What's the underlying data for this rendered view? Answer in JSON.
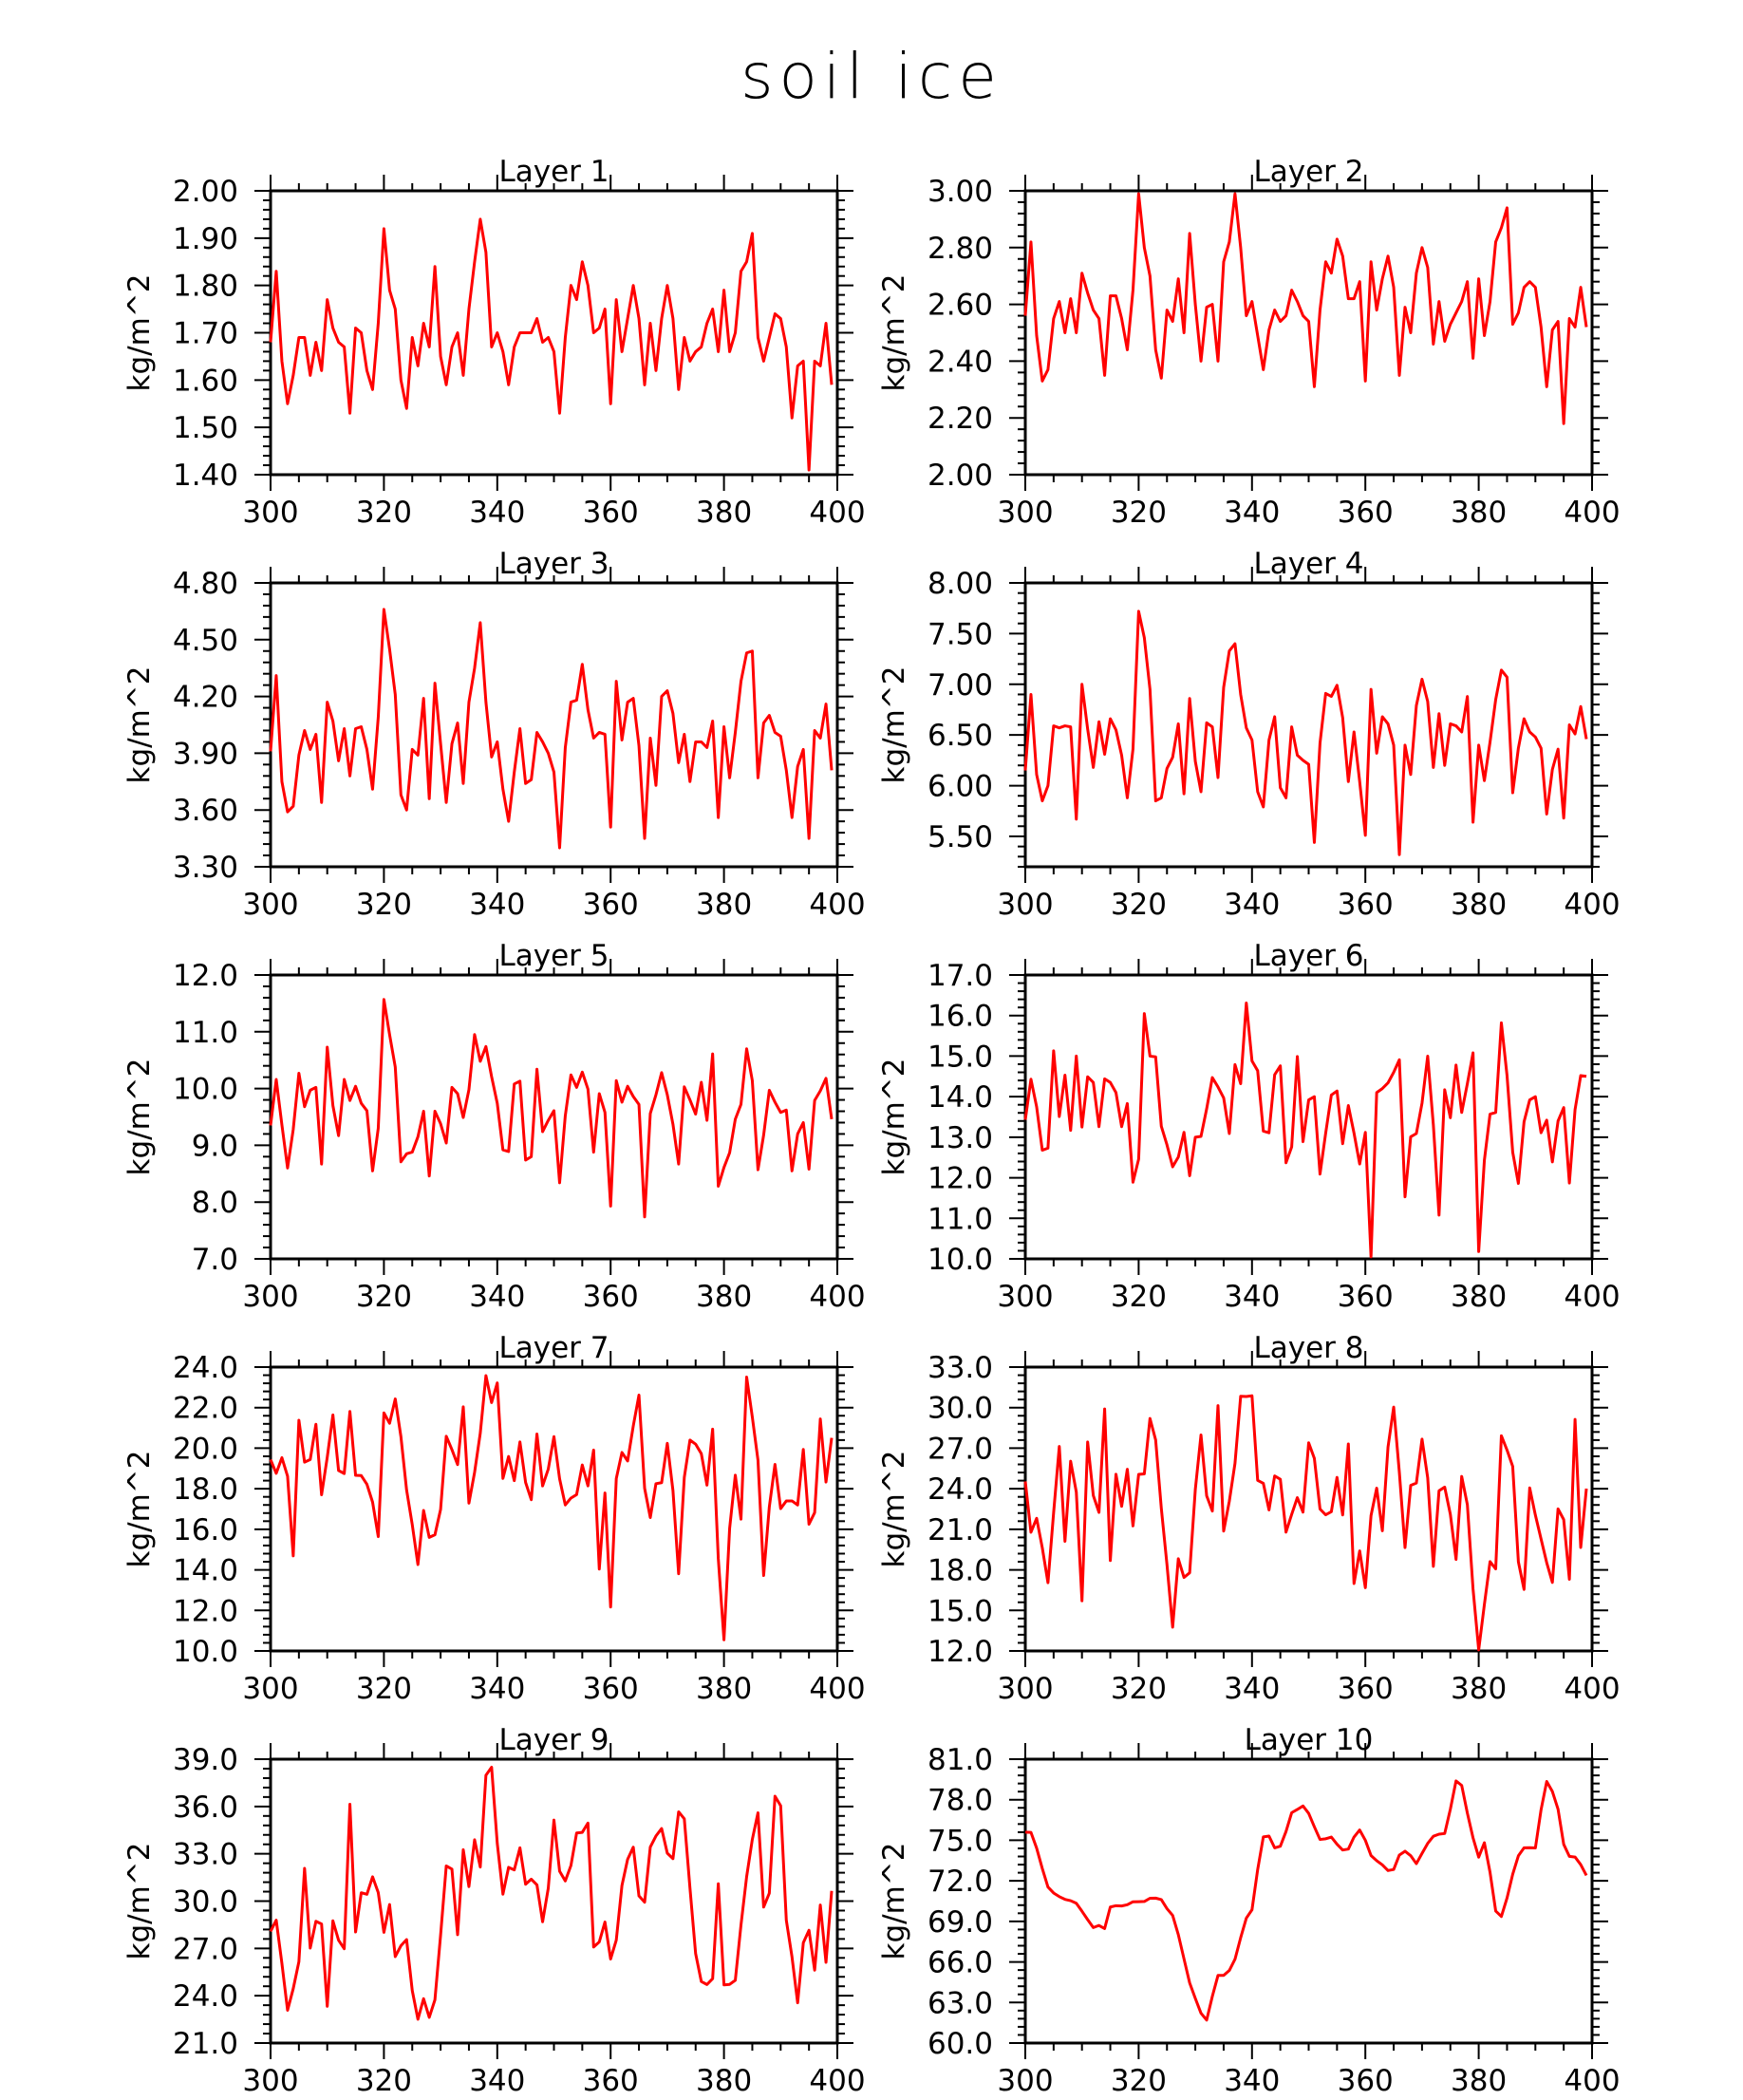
{
  "page": {
    "title": "soil ice"
  },
  "style": {
    "line_color": "#ff0000",
    "axis_color": "#000000"
  },
  "chart_data": [
    {
      "type": "line",
      "title": "Layer 1",
      "xlabel": "",
      "ylabel": "kg/m^2",
      "xlim": [
        300,
        400
      ],
      "ylim": [
        1.4,
        2.0
      ],
      "xticks": [
        "300",
        "320",
        "340",
        "360",
        "380",
        "400"
      ],
      "yticks": [
        "1.40",
        "1.50",
        "1.60",
        "1.70",
        "1.80",
        "1.90",
        "2.00"
      ],
      "x_start": 300,
      "values": [
        1.68,
        1.83,
        1.64,
        1.55,
        1.61,
        1.69,
        1.69,
        1.61,
        1.68,
        1.62,
        1.77,
        1.71,
        1.68,
        1.67,
        1.53,
        1.71,
        1.7,
        1.62,
        1.58,
        1.72,
        1.92,
        1.79,
        1.75,
        1.6,
        1.54,
        1.69,
        1.63,
        1.72,
        1.67,
        1.84,
        1.65,
        1.59,
        1.67,
        1.7,
        1.61,
        1.75,
        1.85,
        1.94,
        1.87,
        1.67,
        1.7,
        1.66,
        1.59,
        1.67,
        1.7,
        1.7,
        1.7,
        1.73,
        1.68,
        1.69,
        1.66,
        1.53,
        1.69,
        1.8,
        1.77,
        1.85,
        1.8,
        1.7,
        1.71,
        1.75,
        1.55,
        1.77,
        1.66,
        1.73,
        1.8,
        1.73,
        1.59,
        1.72,
        1.62,
        1.73,
        1.8,
        1.73,
        1.58,
        1.69,
        1.64,
        1.66,
        1.67,
        1.72,
        1.75,
        1.66,
        1.79,
        1.66,
        1.7,
        1.83,
        1.85,
        1.91,
        1.69,
        1.64,
        1.69,
        1.74,
        1.73,
        1.67,
        1.52,
        1.63,
        1.64,
        1.41,
        1.64,
        1.63,
        1.72,
        1.59
      ]
    },
    {
      "type": "line",
      "title": "Layer 2",
      "xlabel": "",
      "ylabel": "kg/m^2",
      "xlim": [
        300,
        400
      ],
      "ylim": [
        2.0,
        3.0
      ],
      "xticks": [
        "300",
        "320",
        "340",
        "360",
        "380",
        "400"
      ],
      "yticks": [
        "2.00",
        "2.20",
        "2.40",
        "2.60",
        "2.80",
        "3.00"
      ],
      "x_start": 300,
      "values": [
        2.56,
        2.82,
        2.49,
        2.33,
        2.37,
        2.55,
        2.61,
        2.5,
        2.62,
        2.5,
        2.71,
        2.64,
        2.58,
        2.55,
        2.35,
        2.63,
        2.63,
        2.55,
        2.44,
        2.65,
        2.99,
        2.8,
        2.7,
        2.44,
        2.34,
        2.58,
        2.54,
        2.69,
        2.5,
        2.85,
        2.6,
        2.4,
        2.59,
        2.6,
        2.4,
        2.75,
        2.82,
        2.99,
        2.8,
        2.56,
        2.61,
        2.49,
        2.37,
        2.51,
        2.58,
        2.54,
        2.56,
        2.65,
        2.61,
        2.56,
        2.54,
        2.31,
        2.58,
        2.75,
        2.71,
        2.83,
        2.77,
        2.62,
        2.62,
        2.68,
        2.33,
        2.75,
        2.58,
        2.69,
        2.77,
        2.66,
        2.35,
        2.59,
        2.5,
        2.71,
        2.8,
        2.73,
        2.46,
        2.61,
        2.47,
        2.53,
        2.57,
        2.61,
        2.68,
        2.41,
        2.69,
        2.49,
        2.61,
        2.82,
        2.87,
        2.94,
        2.53,
        2.57,
        2.66,
        2.68,
        2.66,
        2.52,
        2.31,
        2.51,
        2.54,
        2.18,
        2.55,
        2.52,
        2.66,
        2.52
      ]
    },
    {
      "type": "line",
      "title": "Layer 3",
      "xlabel": "",
      "ylabel": "kg/m^2",
      "xlim": [
        300,
        400
      ],
      "ylim": [
        3.3,
        4.8
      ],
      "xticks": [
        "300",
        "320",
        "340",
        "360",
        "380",
        "400"
      ],
      "yticks": [
        "3.30",
        "3.60",
        "3.90",
        "4.20",
        "4.50",
        "4.80"
      ],
      "x_start": 300,
      "values": [
        3.91,
        4.31,
        3.75,
        3.59,
        3.62,
        3.89,
        4.02,
        3.92,
        4.0,
        3.64,
        4.17,
        4.07,
        3.86,
        4.03,
        3.78,
        4.03,
        4.04,
        3.92,
        3.71,
        4.09,
        4.66,
        4.45,
        4.21,
        3.68,
        3.6,
        3.92,
        3.89,
        4.19,
        3.66,
        4.27,
        3.95,
        3.64,
        3.95,
        4.06,
        3.74,
        4.17,
        4.35,
        4.59,
        4.17,
        3.88,
        3.96,
        3.71,
        3.54,
        3.8,
        4.03,
        3.74,
        3.76,
        4.01,
        3.96,
        3.9,
        3.8,
        3.4,
        3.93,
        4.17,
        4.18,
        4.37,
        4.13,
        3.98,
        4.01,
        4.0,
        3.51,
        4.28,
        3.97,
        4.17,
        4.19,
        3.94,
        3.45,
        3.98,
        3.73,
        4.2,
        4.23,
        4.11,
        3.85,
        4.0,
        3.75,
        3.96,
        3.96,
        3.93,
        4.07,
        3.56,
        4.04,
        3.77,
        4.01,
        4.28,
        4.43,
        4.44,
        3.77,
        4.06,
        4.1,
        4.01,
        3.99,
        3.81,
        3.56,
        3.83,
        3.92,
        3.45,
        4.02,
        3.98,
        4.16,
        3.81
      ]
    },
    {
      "type": "line",
      "title": "Layer 4",
      "xlabel": "",
      "ylabel": "kg/m^2",
      "xlim": [
        300,
        400
      ],
      "ylim": [
        5.2,
        8.0
      ],
      "xticks": [
        "300",
        "320",
        "340",
        "360",
        "380",
        "400"
      ],
      "yticks": [
        "5.50",
        "6.00",
        "6.50",
        "7.00",
        "7.50",
        "8.00"
      ],
      "x_start": 300,
      "values": [
        6.15,
        6.9,
        6.11,
        5.85,
        6.0,
        6.59,
        6.57,
        6.59,
        6.58,
        5.67,
        7.0,
        6.56,
        6.18,
        6.63,
        6.31,
        6.66,
        6.55,
        6.3,
        5.88,
        6.36,
        7.72,
        7.46,
        6.95,
        5.85,
        5.88,
        6.17,
        6.28,
        6.61,
        5.92,
        6.86,
        6.24,
        5.94,
        6.62,
        6.58,
        6.08,
        6.97,
        7.33,
        7.4,
        6.9,
        6.57,
        6.45,
        5.94,
        5.79,
        6.45,
        6.68,
        5.98,
        5.88,
        6.58,
        6.3,
        6.25,
        6.21,
        5.44,
        6.42,
        6.91,
        6.88,
        6.99,
        6.67,
        6.04,
        6.53,
        6.04,
        5.51,
        6.95,
        6.32,
        6.68,
        6.61,
        6.4,
        5.32,
        6.4,
        6.11,
        6.79,
        7.05,
        6.83,
        6.18,
        6.71,
        6.2,
        6.61,
        6.59,
        6.53,
        6.88,
        5.64,
        6.4,
        6.05,
        6.43,
        6.85,
        7.14,
        7.07,
        5.93,
        6.37,
        6.66,
        6.53,
        6.48,
        6.37,
        5.72,
        6.16,
        6.36,
        5.68,
        6.6,
        6.51,
        6.78,
        6.46
      ]
    },
    {
      "type": "line",
      "title": "Layer 5",
      "xlabel": "",
      "ylabel": "kg/m^2",
      "xlim": [
        300,
        400
      ],
      "ylim": [
        7.0,
        12.0
      ],
      "xticks": [
        "300",
        "320",
        "340",
        "360",
        "380",
        "400"
      ],
      "yticks": [
        "7.0",
        "8.0",
        "9.0",
        "10.0",
        "11.0",
        "12.0"
      ],
      "x_start": 300,
      "values": [
        9.35,
        10.16,
        9.36,
        8.6,
        9.28,
        10.27,
        9.68,
        9.97,
        10.02,
        8.67,
        10.73,
        9.7,
        9.17,
        10.16,
        9.79,
        10.04,
        9.74,
        9.61,
        8.55,
        9.3,
        11.57,
        10.95,
        10.38,
        8.71,
        8.85,
        8.88,
        9.15,
        9.6,
        8.46,
        9.6,
        9.38,
        9.04,
        10.02,
        9.91,
        9.49,
        9.98,
        10.95,
        10.48,
        10.74,
        10.21,
        9.74,
        8.92,
        8.89,
        10.08,
        10.13,
        8.74,
        8.8,
        10.34,
        9.24,
        9.44,
        9.61,
        8.34,
        9.52,
        10.24,
        10.02,
        10.29,
        9.99,
        8.88,
        9.91,
        9.58,
        7.93,
        10.14,
        9.76,
        10.04,
        9.86,
        9.72,
        7.74,
        9.56,
        9.89,
        10.28,
        9.89,
        9.37,
        8.67,
        10.03,
        9.8,
        9.55,
        10.11,
        9.44,
        10.61,
        8.28,
        8.61,
        8.87,
        9.46,
        9.72,
        10.7,
        10.14,
        8.57,
        9.18,
        9.97,
        9.76,
        9.58,
        9.62,
        8.55,
        9.2,
        9.4,
        8.58,
        9.79,
        9.96,
        10.18,
        9.46
      ]
    },
    {
      "type": "line",
      "title": "Layer 6",
      "xlabel": "",
      "ylabel": "kg/m^2",
      "xlim": [
        300,
        400
      ],
      "ylim": [
        10.0,
        17.0
      ],
      "xticks": [
        "300",
        "320",
        "340",
        "360",
        "380",
        "400"
      ],
      "yticks": [
        "10.0",
        "11.0",
        "12.0",
        "13.0",
        "14.0",
        "15.0",
        "16.0",
        "17.0"
      ],
      "x_start": 300,
      "values": [
        13.43,
        14.43,
        13.75,
        12.68,
        12.73,
        15.13,
        13.51,
        14.53,
        13.17,
        15.0,
        13.25,
        14.49,
        14.35,
        13.26,
        14.44,
        14.35,
        14.1,
        13.26,
        13.83,
        11.89,
        12.46,
        16.05,
        15.0,
        14.98,
        13.27,
        12.81,
        12.27,
        12.51,
        13.12,
        12.05,
        13.0,
        13.02,
        13.7,
        14.47,
        14.24,
        13.97,
        13.09,
        14.79,
        14.32,
        16.31,
        14.88,
        14.64,
        13.15,
        13.11,
        14.54,
        14.76,
        12.37,
        12.76,
        14.99,
        12.89,
        13.92,
        14.0,
        12.09,
        13.1,
        14.04,
        14.14,
        12.84,
        13.78,
        13.1,
        12.34,
        13.12,
        10.05,
        14.1,
        14.2,
        14.34,
        14.6,
        14.91,
        11.53,
        13.01,
        13.09,
        13.84,
        15.0,
        13.3,
        11.08,
        14.17,
        13.48,
        14.78,
        13.61,
        14.32,
        15.08,
        10.18,
        12.43,
        13.57,
        13.61,
        15.82,
        14.52,
        12.63,
        11.86,
        13.38,
        13.92,
        14.0,
        13.11,
        13.42,
        12.39,
        13.4,
        13.73,
        11.87,
        13.68,
        14.52,
        14.5
      ]
    },
    {
      "type": "line",
      "title": "Layer 7",
      "xlabel": "",
      "ylabel": "kg/m^2",
      "xlim": [
        300,
        400
      ],
      "ylim": [
        10.0,
        24.0
      ],
      "xticks": [
        "300",
        "320",
        "340",
        "360",
        "380",
        "400"
      ],
      "yticks": [
        "10.0",
        "12.0",
        "14.0",
        "16.0",
        "18.0",
        "20.0",
        "22.0",
        "24.0"
      ],
      "x_start": 300,
      "values": [
        19.44,
        18.76,
        19.53,
        18.62,
        14.69,
        21.38,
        19.31,
        19.44,
        21.18,
        17.7,
        19.55,
        21.64,
        18.9,
        18.75,
        21.81,
        18.66,
        18.65,
        18.22,
        17.34,
        15.64,
        21.74,
        21.23,
        22.43,
        20.57,
        17.94,
        16.23,
        14.26,
        16.93,
        15.6,
        15.73,
        16.98,
        20.59,
        19.93,
        19.19,
        22.04,
        17.29,
        18.81,
        20.74,
        23.58,
        22.25,
        23.22,
        18.51,
        19.59,
        18.4,
        20.31,
        18.31,
        17.46,
        20.7,
        18.14,
        18.97,
        20.57,
        18.49,
        17.2,
        17.54,
        17.71,
        19.17,
        18.14,
        19.91,
        14.04,
        17.79,
        12.17,
        18.5,
        19.79,
        19.37,
        21.1,
        22.62,
        18.02,
        16.58,
        18.25,
        18.3,
        20.24,
        17.91,
        13.81,
        18.56,
        20.4,
        20.2,
        19.73,
        18.18,
        20.94,
        14.55,
        10.55,
        16.05,
        18.67,
        16.5,
        23.51,
        21.54,
        19.41,
        13.72,
        17.1,
        19.2,
        17.02,
        17.4,
        17.4,
        17.2,
        19.94,
        16.25,
        16.82,
        21.44,
        18.33,
        20.51
      ]
    },
    {
      "type": "line",
      "title": "Layer 8",
      "xlabel": "",
      "ylabel": "kg/m^2",
      "xlim": [
        300,
        400
      ],
      "ylim": [
        12.0,
        33.0
      ],
      "xticks": [
        "300",
        "320",
        "340",
        "360",
        "380",
        "400"
      ],
      "yticks": [
        "12.0",
        "15.0",
        "18.0",
        "21.0",
        "24.0",
        "27.0",
        "30.0",
        "33.0"
      ],
      "x_start": 300,
      "values": [
        24.54,
        20.78,
        21.81,
        19.63,
        17.05,
        22.24,
        27.13,
        20.11,
        26.04,
        23.76,
        15.71,
        27.46,
        23.5,
        22.25,
        29.9,
        18.69,
        25.07,
        22.7,
        25.44,
        21.25,
        25.06,
        25.1,
        29.2,
        27.61,
        22.55,
        18.38,
        13.76,
        18.82,
        17.44,
        17.78,
        23.95,
        27.98,
        23.48,
        22.35,
        30.15,
        20.87,
        23.08,
        25.88,
        30.84,
        30.82,
        30.88,
        24.62,
        24.4,
        22.43,
        24.95,
        24.7,
        20.79,
        22.1,
        23.34,
        22.27,
        27.4,
        26.25,
        22.5,
        22.07,
        22.3,
        24.84,
        22.06,
        27.31,
        16.99,
        19.4,
        16.68,
        22.01,
        24.04,
        20.89,
        27.09,
        30.04,
        25.21,
        19.65,
        24.25,
        24.42,
        27.67,
        24.81,
        18.26,
        23.85,
        24.12,
        22.1,
        18.77,
        24.91,
        22.82,
        16.59,
        12.08,
        15.43,
        18.61,
        18.07,
        27.92,
        26.86,
        25.65,
        18.6,
        16.55,
        24.06,
        22.05,
        20.29,
        18.53,
        17.07,
        22.51,
        21.72,
        17.3,
        29.13,
        19.66,
        24.01
      ]
    },
    {
      "type": "line",
      "title": "Layer 9",
      "xlabel": "",
      "ylabel": "kg/m^2",
      "xlim": [
        300,
        400
      ],
      "ylim": [
        21.0,
        39.0
      ],
      "xticks": [
        "300",
        "320",
        "340",
        "360",
        "380",
        "400"
      ],
      "yticks": [
        "21.0",
        "24.0",
        "27.0",
        "30.0",
        "33.0",
        "36.0",
        "39.0"
      ],
      "x_start": 300,
      "values": [
        28.08,
        28.79,
        26.05,
        23.08,
        24.45,
        26.16,
        32.08,
        27.02,
        28.72,
        28.55,
        23.33,
        28.75,
        27.52,
        26.98,
        36.14,
        28.04,
        30.53,
        30.43,
        31.54,
        30.54,
        28.02,
        29.78,
        26.48,
        27.17,
        27.56,
        24.33,
        22.51,
        23.81,
        22.63,
        23.74,
        27.84,
        32.23,
        32.03,
        27.87,
        33.26,
        30.92,
        33.89,
        32.16,
        37.98,
        38.49,
        33.66,
        30.44,
        32.14,
        31.98,
        33.38,
        31.07,
        31.39,
        31.03,
        28.69,
        30.82,
        35.14,
        31.9,
        31.28,
        32.26,
        34.32,
        34.36,
        34.95,
        27.09,
        27.41,
        28.67,
        26.33,
        27.53,
        30.99,
        32.65,
        33.42,
        30.33,
        29.93,
        33.43,
        34.13,
        34.6,
        33.04,
        32.69,
        35.66,
        35.22,
        30.83,
        26.67,
        24.9,
        24.71,
        25.08,
        31.1,
        24.69,
        24.72,
        24.98,
        28.48,
        31.55,
        33.91,
        35.6,
        29.62,
        30.5,
        36.65,
        36.05,
        28.79,
        26.47,
        23.55,
        27.36,
        28.15,
        25.62,
        29.75,
        26.12,
        30.65
      ]
    },
    {
      "type": "line",
      "title": "Layer 10",
      "xlabel": "",
      "ylabel": "kg/m^2",
      "xlim": [
        300,
        400
      ],
      "ylim": [
        60.0,
        81.0
      ],
      "xticks": [
        "300",
        "320",
        "340",
        "360",
        "380",
        "400"
      ],
      "yticks": [
        "60.0",
        "63.0",
        "66.0",
        "69.0",
        "72.0",
        "75.0",
        "78.0",
        "81.0"
      ],
      "x_start": 300,
      "values": [
        75.6,
        75.58,
        74.42,
        72.91,
        71.54,
        71.1,
        70.83,
        70.63,
        70.53,
        70.34,
        69.75,
        69.13,
        68.54,
        68.7,
        68.47,
        70.06,
        70.16,
        70.14,
        70.23,
        70.45,
        70.46,
        70.47,
        70.71,
        70.72,
        70.61,
        69.94,
        69.44,
        68.02,
        66.23,
        64.45,
        63.3,
        62.21,
        61.7,
        63.45,
        65.0,
        65.0,
        65.37,
        66.2,
        67.79,
        69.24,
        69.86,
        72.83,
        75.25,
        75.31,
        74.44,
        74.56,
        75.65,
        77.04,
        77.28,
        77.54,
        76.99,
        76.0,
        75.06,
        75.11,
        75.24,
        74.71,
        74.28,
        74.35,
        75.24,
        75.76,
        75.0,
        73.87,
        73.49,
        73.18,
        72.76,
        72.84,
        73.91,
        74.19,
        73.86,
        73.27,
        74.03,
        74.77,
        75.3,
        75.45,
        75.5,
        77.3,
        79.39,
        79.06,
        77.01,
        75.18,
        73.75,
        74.82,
        72.63,
        69.77,
        69.36,
        70.73,
        72.49,
        73.85,
        74.44,
        74.45,
        74.43,
        77.25,
        79.35,
        78.61,
        77.3,
        74.7,
        73.81,
        73.76,
        73.2,
        72.4
      ]
    }
  ]
}
